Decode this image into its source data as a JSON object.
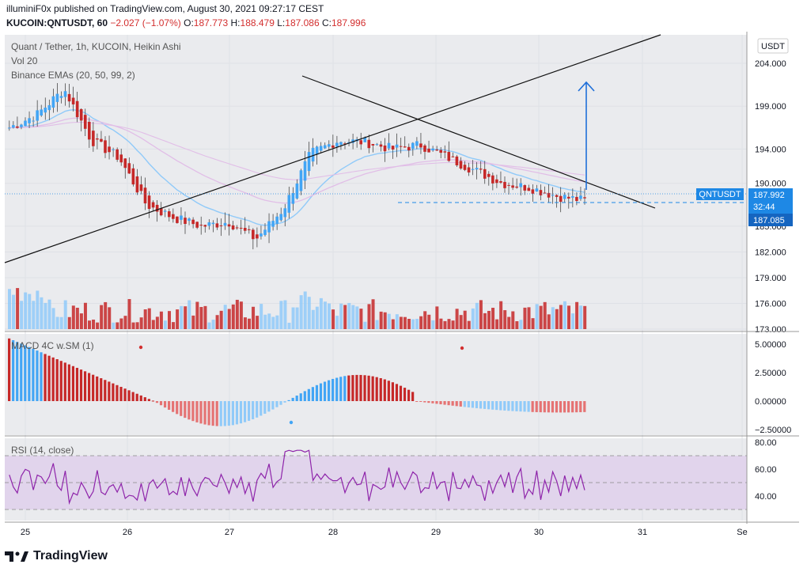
{
  "header": {
    "publisher": "illuminiF0x published on TradingView.com, August 30, 2021 09:27:17 CEST",
    "symbol_line": "KUCOIN:QNTUSDT, 60",
    "change": "−2.027 (−1.07%)",
    "o_label": "O:",
    "o_value": "187.773",
    "h_label": "H:",
    "h_value": "188.479",
    "l_label": "L:",
    "l_value": "187.086",
    "c_label": "C:",
    "c_value": "187.996"
  },
  "legend": {
    "main_title": "Quant / Tether, 1h, KUCOIN, Heikin Ashi",
    "vol": "Vol 20",
    "emas": "Binance EMAs (20, 50, 99, 2)",
    "macd": "MACD 4C w.SM (1)",
    "rsi": "RSI (14, close)"
  },
  "price_axis": {
    "currency": "USDT",
    "ticks": [
      "204.000",
      "199.000",
      "194.000",
      "190.000",
      "185.000",
      "182.000",
      "179.000",
      "176.000",
      "173.000"
    ],
    "last_label": "QNTUSDT",
    "last_price": "187.992",
    "countdown": "32:44",
    "line_price": "187.085"
  },
  "macd_axis": {
    "ticks": [
      "5.00000",
      "2.50000",
      "0.00000",
      "−2.50000"
    ]
  },
  "rsi_axis": {
    "ticks": [
      "80.00",
      "60.00",
      "40.00"
    ]
  },
  "time_axis": {
    "ticks": [
      "25",
      "26",
      "27",
      "28",
      "29",
      "30",
      "31",
      "Se"
    ]
  },
  "footer": {
    "brand": "TradingView"
  },
  "colors": {
    "up": "#42a5f5",
    "down": "#c62828",
    "up_light": "#90caf9",
    "ema20": "#90caf9",
    "ema_pink": "#e1bee7",
    "rsi": "#8e24aa",
    "rsi_band": "#e1d4ec",
    "price_badge": "#1e88e5",
    "bg_chart": "#eaebee"
  },
  "chart_data": {
    "type": "candlestick",
    "days": [
      "25",
      "26",
      "27",
      "28",
      "29",
      "30"
    ],
    "close_approx": [
      196.5,
      198.0,
      201.0,
      195.0,
      193.0,
      187.5,
      186.0,
      185.0,
      185.5,
      183.5,
      187.0,
      193.5,
      195.0,
      194.8,
      194.0,
      194.5,
      193.0,
      191.5,
      190.0,
      189.5,
      188.5,
      187.992
    ],
    "price_range": [
      173.0,
      206.0
    ],
    "macd_range": [
      -3.5,
      6.0
    ],
    "rsi_range": [
      20,
      85
    ],
    "rsi_levels": [
      70,
      50,
      30
    ],
    "target_arrow_to": 201.5
  }
}
